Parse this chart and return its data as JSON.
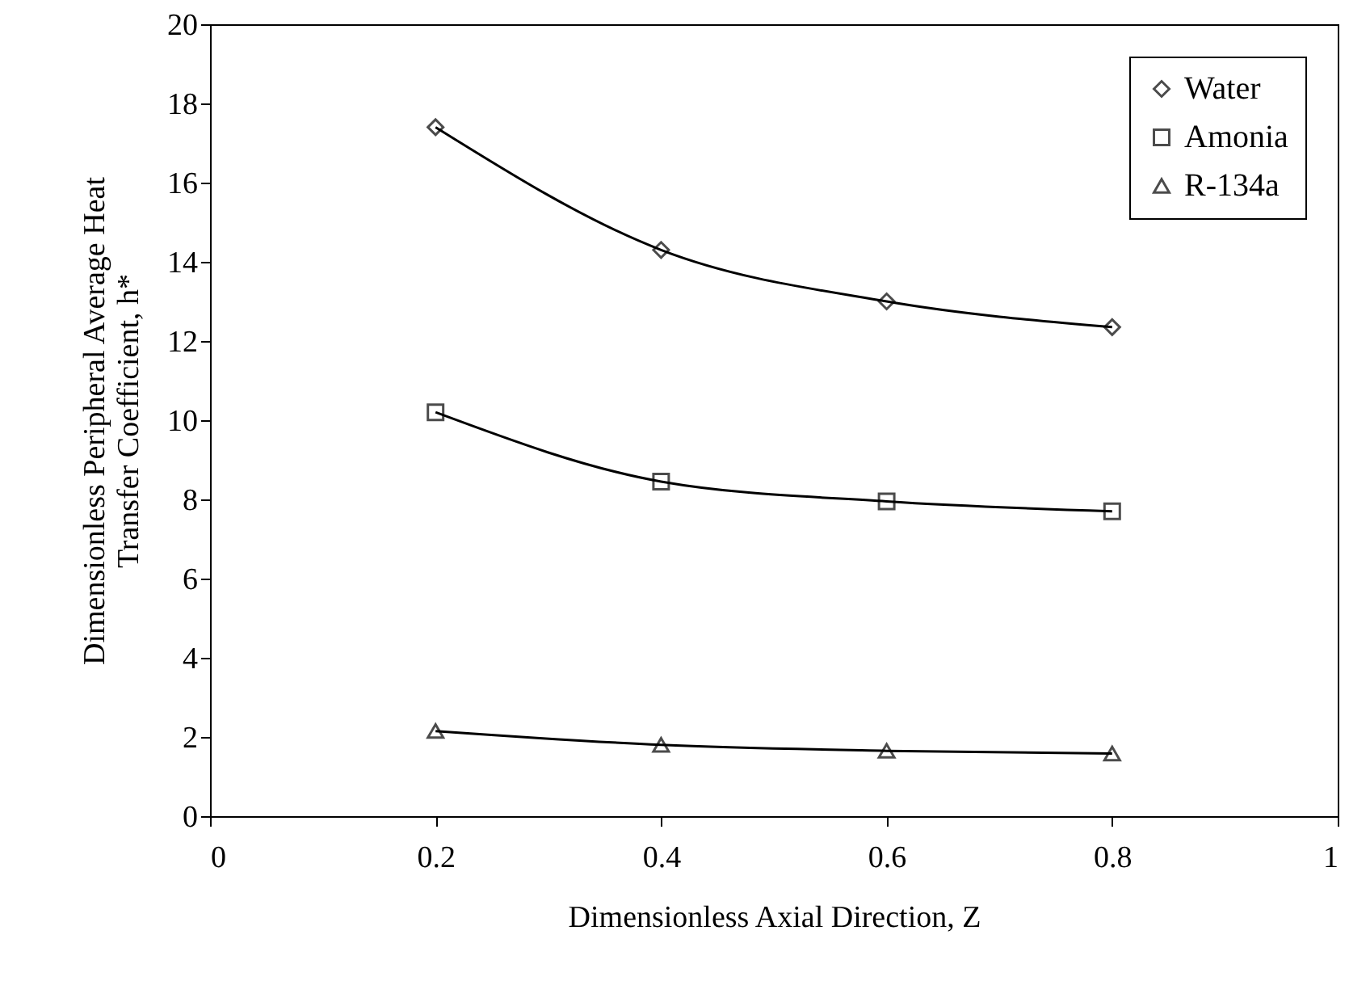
{
  "chart_data": {
    "type": "line",
    "xlabel": "Dimensionless Axial Direction, Z",
    "ylabel": "Dimensionless Peripheral Average Heat\nTransfer Coefficient, h*",
    "x": [
      0.2,
      0.4,
      0.6,
      0.8
    ],
    "xlim": [
      0,
      1
    ],
    "xticks": [
      0,
      0.2,
      0.4,
      0.6,
      0.8,
      1
    ],
    "ylim": [
      0,
      20
    ],
    "yticks": [
      0,
      2,
      4,
      6,
      8,
      10,
      12,
      14,
      16,
      18,
      20
    ],
    "grid": false,
    "legend": "top right",
    "line_style": "solid",
    "series": [
      {
        "name": "Water",
        "color": "#000000",
        "marker": "diamond",
        "values": [
          17.4,
          14.3,
          13.0,
          12.35
        ]
      },
      {
        "name": "Amonia",
        "color": "#000000",
        "marker": "square",
        "values": [
          10.2,
          8.45,
          7.95,
          7.7
        ]
      },
      {
        "name": "R-134a",
        "color": "#000000",
        "marker": "triangle",
        "values": [
          2.15,
          1.8,
          1.65,
          1.58
        ]
      }
    ]
  }
}
